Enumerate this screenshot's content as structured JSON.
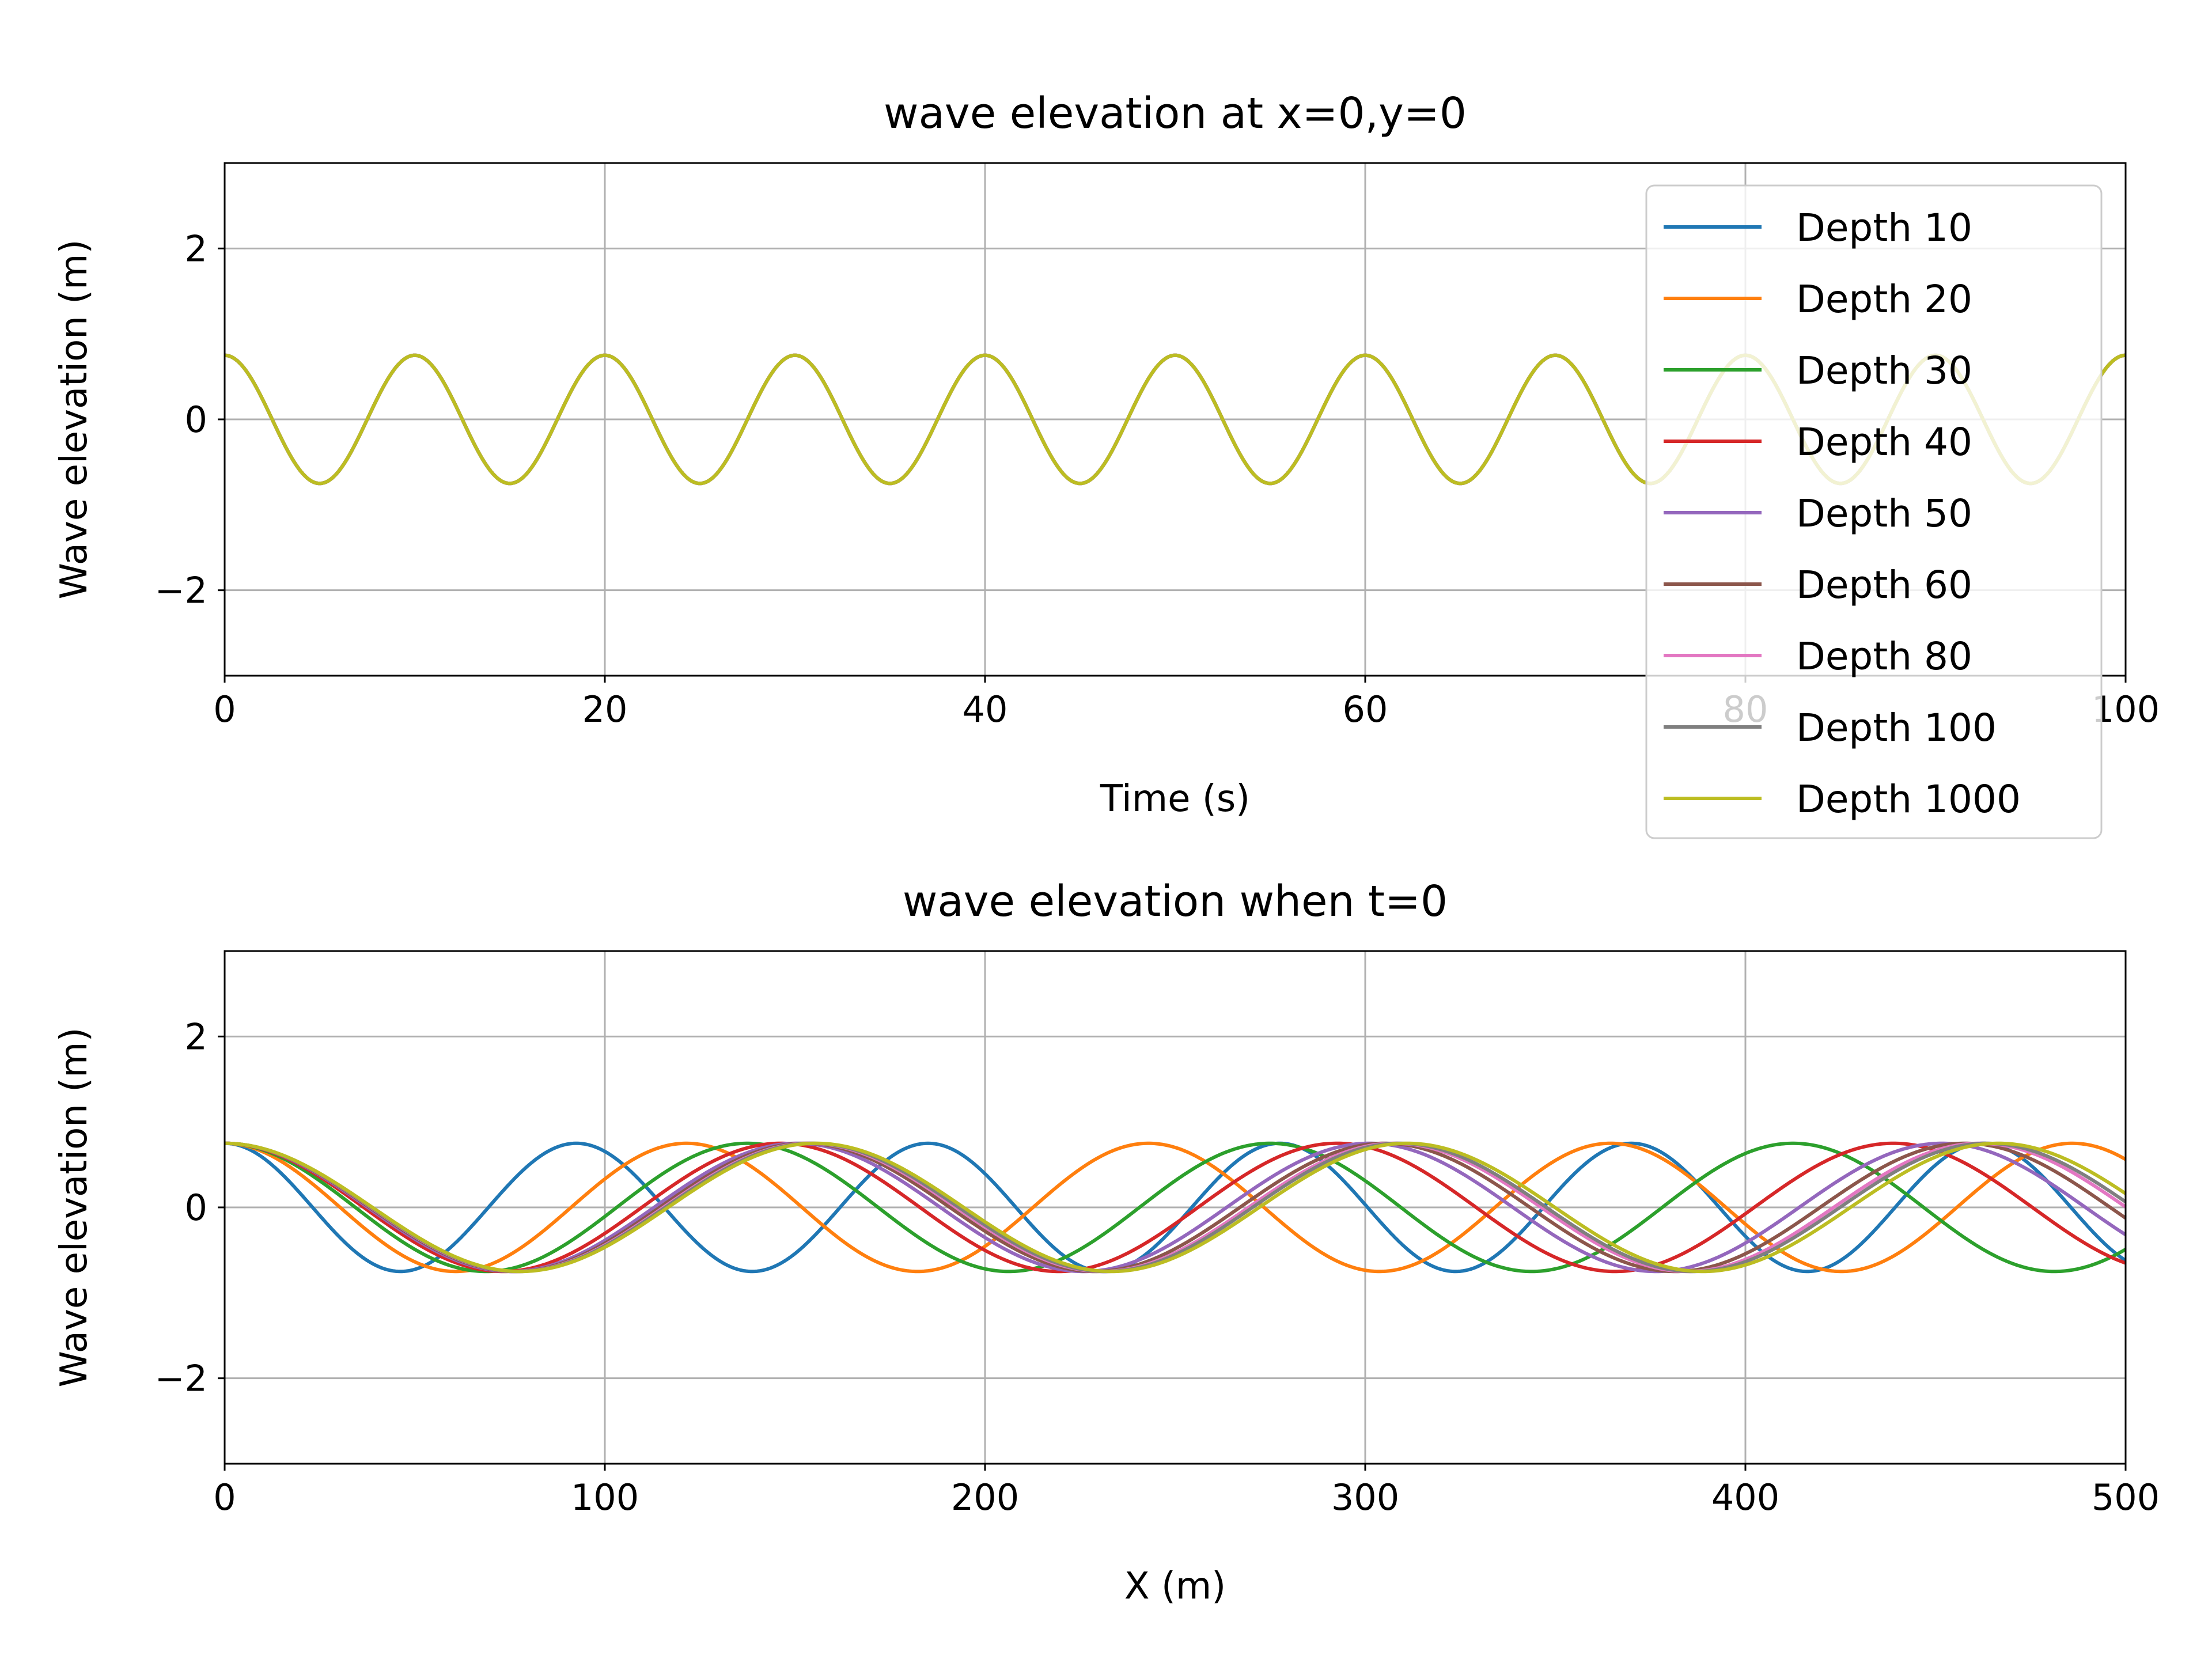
{
  "chart_data": [
    {
      "type": "line",
      "title": "wave elevation at x=0,y=0",
      "xlabel": "Time (s)",
      "ylabel": "Wave elevation (m)",
      "xlim": [
        0,
        100
      ],
      "ylim": [
        -3,
        3
      ],
      "xticks": [
        0,
        20,
        40,
        60,
        80,
        100
      ],
      "yticks": [
        -2,
        0,
        2
      ],
      "xtick_labels": [
        "0",
        "20",
        "40",
        "60",
        "80",
        "100"
      ],
      "ytick_labels": [
        "−2",
        "0",
        "2"
      ],
      "grid": true,
      "legend": "top-right",
      "amplitude": 0.75,
      "period": 10,
      "series": [
        {
          "name": "Depth 10",
          "color": "#1f77b4"
        },
        {
          "name": "Depth 20",
          "color": "#ff7f0e"
        },
        {
          "name": "Depth 30",
          "color": "#2ca02c"
        },
        {
          "name": "Depth 40",
          "color": "#d62728"
        },
        {
          "name": "Depth 50",
          "color": "#9467bd"
        },
        {
          "name": "Depth 60",
          "color": "#8c564b"
        },
        {
          "name": "Depth 80",
          "color": "#e377c2"
        },
        {
          "name": "Depth 100",
          "color": "#7f7f7f"
        },
        {
          "name": "Depth 1000",
          "color": "#bcbd22"
        }
      ]
    },
    {
      "type": "line",
      "title": "wave elevation when t=0",
      "xlabel": "X (m)",
      "ylabel": "Wave elevation (m)",
      "xlim": [
        0,
        500
      ],
      "ylim": [
        -3,
        3
      ],
      "xticks": [
        0,
        100,
        200,
        300,
        400,
        500
      ],
      "yticks": [
        -2,
        0,
        2
      ],
      "xtick_labels": [
        "0",
        "100",
        "200",
        "300",
        "400",
        "500"
      ],
      "ytick_labels": [
        "−2",
        "0",
        "2"
      ],
      "grid": true,
      "amplitude": 0.75,
      "series": [
        {
          "name": "Depth 10",
          "color": "#1f77b4",
          "wavelength": 92.5
        },
        {
          "name": "Depth 20",
          "color": "#ff7f0e",
          "wavelength": 121.5
        },
        {
          "name": "Depth 30",
          "color": "#2ca02c",
          "wavelength": 137.5
        },
        {
          "name": "Depth 40",
          "color": "#d62728",
          "wavelength": 146.3
        },
        {
          "name": "Depth 50",
          "color": "#9467bd",
          "wavelength": 150.6
        },
        {
          "name": "Depth 60",
          "color": "#8c564b",
          "wavelength": 152.6
        },
        {
          "name": "Depth 80",
          "color": "#e377c2",
          "wavelength": 153.9
        },
        {
          "name": "Depth 100",
          "color": "#7f7f7f",
          "wavelength": 154.5
        },
        {
          "name": "Depth 1000",
          "color": "#bcbd22",
          "wavelength": 155.5
        }
      ]
    }
  ]
}
